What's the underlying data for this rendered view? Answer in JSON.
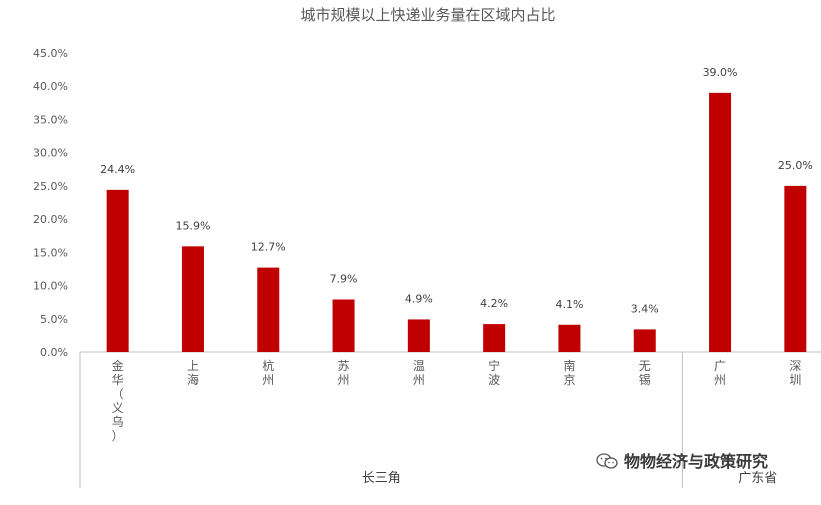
{
  "chart_data": {
    "type": "bar",
    "title": "城市规模以上快递业务量在区域内占比",
    "categories": [
      "金华（义乌）",
      "上海",
      "杭州",
      "苏州",
      "温州",
      "宁波",
      "南京",
      "无锡",
      "广州",
      "深圳"
    ],
    "category_display": [
      [
        "金",
        "华",
        "（",
        "义",
        "乌",
        "）"
      ],
      [
        "上",
        "海"
      ],
      [
        "杭",
        "州"
      ],
      [
        "苏",
        "州"
      ],
      [
        "温",
        "州"
      ],
      [
        "宁",
        "波"
      ],
      [
        "南",
        "京"
      ],
      [
        "无",
        "锡"
      ],
      [
        "广",
        "州"
      ],
      [
        "深",
        "圳"
      ]
    ],
    "values": [
      24.4,
      15.9,
      12.7,
      7.9,
      4.9,
      4.2,
      4.1,
      3.4,
      39.0,
      25.0
    ],
    "data_labels": [
      "24.4%",
      "15.9%",
      "12.7%",
      "7.9%",
      "4.9%",
      "4.2%",
      "4.1%",
      "3.4%",
      "39.0%",
      "25.0%"
    ],
    "groups": [
      {
        "label": "长三角",
        "categories": [
          "金华（义乌）",
          "上海",
          "杭州",
          "苏州",
          "温州",
          "宁波",
          "南京",
          "无锡"
        ]
      },
      {
        "label": "广东省",
        "categories": [
          "广州",
          "深圳"
        ]
      }
    ],
    "yticks": [
      "0.0%",
      "5.0%",
      "10.0%",
      "15.0%",
      "20.0%",
      "25.0%",
      "30.0%",
      "35.0%",
      "40.0%",
      "45.0%"
    ],
    "ylim": [
      0,
      45
    ],
    "grid": false,
    "legend": "none",
    "bar_color": "#C00000"
  },
  "watermark": {
    "text": "物物经济与政策研究",
    "icon": "wechat-icon"
  }
}
